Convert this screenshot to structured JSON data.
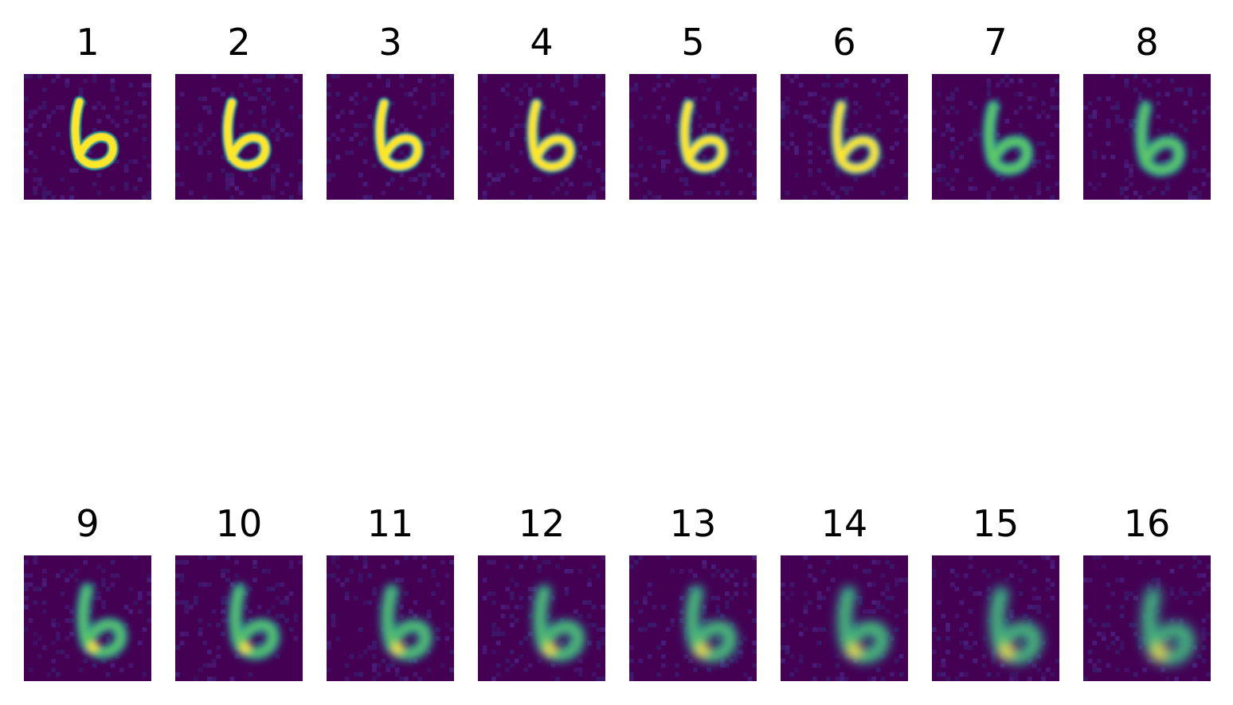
{
  "figure": {
    "panels": [
      {
        "title": "1"
      },
      {
        "title": "2"
      },
      {
        "title": "3"
      },
      {
        "title": "4"
      },
      {
        "title": "5"
      },
      {
        "title": "6"
      },
      {
        "title": "7"
      },
      {
        "title": "8"
      },
      {
        "title": "9"
      },
      {
        "title": "10"
      },
      {
        "title": "11"
      },
      {
        "title": "12"
      },
      {
        "title": "13"
      },
      {
        "title": "14"
      },
      {
        "title": "15"
      },
      {
        "title": "16"
      }
    ]
  },
  "colors": {
    "background": "#440154",
    "stroke_bright": "#fde725",
    "stroke_mid": "#21918c",
    "stroke_light": "#5ec962"
  }
}
